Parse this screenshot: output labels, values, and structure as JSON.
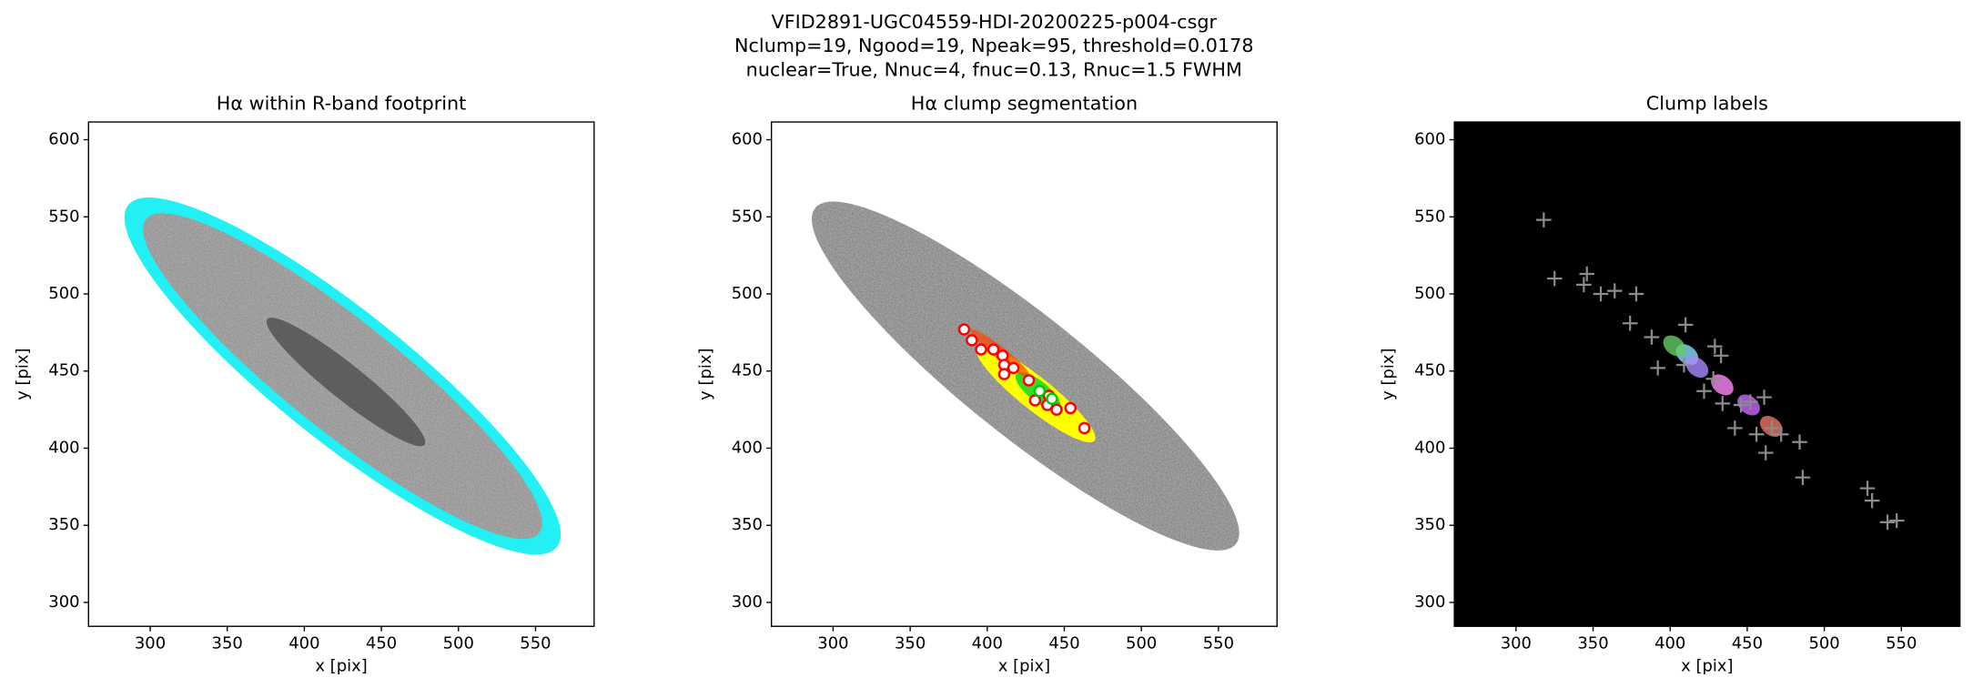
{
  "figure_title": [
    "VFID2891-UGC04559-HDI-20200225-p004-csgr",
    "Nclump=19, Ngood=19, Npeak=95, threshold=0.0178",
    "nuclear=True, Nnuc=4, fnuc=0.13, Rnuc=1.5 FWHM"
  ],
  "chart_data": [
    {
      "type": "image",
      "title": "Hα within R-band footprint",
      "x_label": "x [pix]",
      "y_label": "y [pix]",
      "xlim": [
        260,
        588
      ],
      "ylim": [
        284.5,
        611.5
      ],
      "xticks": [
        300,
        350,
        400,
        450,
        500,
        550
      ],
      "yticks": [
        300,
        350,
        400,
        450,
        500,
        550,
        600
      ],
      "background": "#ffffff",
      "series": []
    },
    {
      "type": "scatter",
      "title": "Hα clump segmentation",
      "x_label": "x [pix]",
      "y_label": "y [pix]",
      "xlim": [
        260,
        588
      ],
      "ylim": [
        284.5,
        611.5
      ],
      "xticks": [
        300,
        350,
        400,
        450,
        500,
        550
      ],
      "yticks": [
        300,
        350,
        400,
        450,
        500,
        550,
        600
      ],
      "background": "#ffffff",
      "series": [
        {
          "color": "#ff0000",
          "marker": "circle",
          "x": [
            385,
            390,
            396,
            404,
            410,
            411,
            417,
            411,
            427,
            440,
            439,
            445,
            454,
            463,
            431
          ],
          "values": [
            477,
            470,
            464,
            464,
            460,
            454,
            452,
            448,
            444,
            434,
            428,
            425,
            426,
            413,
            431
          ]
        },
        {
          "color": "#00cc00",
          "marker": "circle",
          "x": [
            434,
            442
          ],
          "values": [
            437,
            432
          ]
        }
      ]
    },
    {
      "type": "scatter",
      "title": "Clump labels",
      "x_label": "x [pix]",
      "y_label": "y [pix]",
      "xlim": [
        260,
        588
      ],
      "ylim": [
        284.5,
        611.5
      ],
      "xticks": [
        300,
        350,
        400,
        450,
        500,
        550
      ],
      "yticks": [
        300,
        350,
        400,
        450,
        500,
        550,
        600
      ],
      "background": "#000000",
      "series": [
        {
          "color": "#8c8c8c",
          "marker": "plus",
          "x": [
            318,
            325,
            346,
            344,
            355,
            364,
            378,
            374,
            388,
            410,
            409,
            429,
            433,
            428,
            434,
            446,
            461,
            466,
            472,
            484,
            486,
            462,
            442,
            452,
            528,
            531,
            541,
            547,
            392,
            422,
            456
          ],
          "values": [
            548,
            510,
            513,
            506,
            500,
            502,
            500,
            481,
            472,
            480,
            454,
            466,
            460,
            445,
            429,
            428,
            433,
            413,
            409,
            404,
            381,
            397,
            413,
            430,
            374,
            366,
            352,
            353,
            452,
            437,
            409
          ]
        }
      ]
    }
  ]
}
